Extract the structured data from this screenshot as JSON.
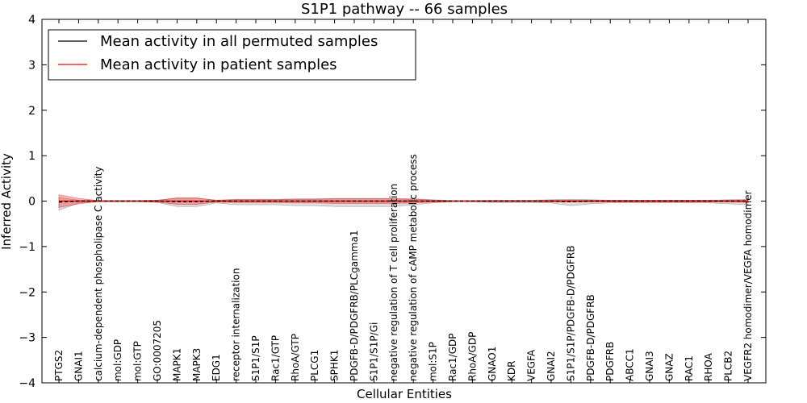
{
  "chart_data": {
    "type": "line",
    "title": "S1P1 pathway -- 66 samples",
    "xlabel": "Cellular Entities",
    "ylabel": "Inferred Activity",
    "ylim": [
      -4,
      4
    ],
    "yticks": [
      -4,
      -3,
      -2,
      -1,
      0,
      1,
      2,
      3,
      4
    ],
    "ytick_labels": [
      "−4",
      "−3",
      "−2",
      "−1",
      "0",
      "1",
      "2",
      "3",
      "4"
    ],
    "legend_position": "top-left",
    "categories": [
      "PTGS2",
      "GNAI1",
      "calcium-dependent phospholipase C activity",
      "mol:GDP",
      "mol:GTP",
      "GO:0007205",
      "MAPK1",
      "MAPK3",
      "EDG1",
      "receptor internalization",
      "S1P1/S1P",
      "Rac1/GTP",
      "RhoA/GTP",
      "PLCG1",
      "SPHK1",
      "PDGFB-D/PDGFRB/PLCgamma1",
      "S1P1/S1P/Gi",
      "negative regulation of T cell proliferation",
      "negative regulation of cAMP metabolic process",
      "mol:S1P",
      "Rac1/GDP",
      "RhoA/GDP",
      "GNAO1",
      "KDR",
      "VEGFA",
      "GNAI2",
      "S1P1/S1P/PDGFB-D/PDGFRB",
      "PDGFB-D/PDGFRB",
      "PDGFRB",
      "ABCC1",
      "GNAI3",
      "GNAZ",
      "RAC1",
      "RHOA",
      "PLCB2",
      "VEGFR2 homodimer/VEGFA homodimer"
    ],
    "series": [
      {
        "name": "Mean activity in all permuted samples",
        "color": "#000000",
        "values": [
          -0.02,
          0,
          0,
          0,
          0,
          0,
          -0.01,
          -0.01,
          0,
          0,
          0,
          0,
          0,
          0,
          0,
          0,
          0,
          0,
          0,
          0,
          0,
          0,
          0,
          0,
          0,
          0,
          -0.01,
          0,
          0,
          0,
          0,
          0,
          0,
          0,
          0,
          0
        ],
        "band_upper": [
          0.08,
          0.02,
          0.01,
          0.01,
          0.01,
          0.02,
          0.06,
          0.06,
          0.02,
          0.04,
          0.04,
          0.04,
          0.05,
          0.05,
          0.06,
          0.06,
          0.06,
          0.06,
          0.05,
          0.03,
          0.01,
          0.01,
          0.02,
          0.02,
          0.02,
          0.03,
          0.04,
          0.03,
          0.02,
          0.02,
          0.02,
          0.02,
          0.02,
          0.02,
          0.03,
          0.03
        ],
        "band_lower": [
          -0.2,
          -0.04,
          -0.01,
          -0.01,
          -0.01,
          -0.03,
          -0.12,
          -0.12,
          -0.04,
          -0.08,
          -0.08,
          -0.08,
          -0.1,
          -0.1,
          -0.12,
          -0.12,
          -0.12,
          -0.12,
          -0.08,
          -0.04,
          -0.01,
          -0.01,
          -0.03,
          -0.03,
          -0.03,
          -0.04,
          -0.1,
          -0.06,
          -0.04,
          -0.04,
          -0.04,
          -0.04,
          -0.04,
          -0.04,
          -0.06,
          -0.08
        ]
      },
      {
        "name": "Mean activity in patient samples",
        "color": "#ff0000",
        "values": [
          0,
          0,
          0,
          0,
          0,
          0,
          0,
          0,
          0,
          0,
          0,
          0,
          0,
          0,
          0,
          0,
          0,
          0,
          0,
          0,
          0,
          0,
          0,
          0,
          0,
          0,
          0,
          0,
          0,
          0,
          0,
          0,
          0,
          0,
          0,
          0
        ],
        "band_upper": [
          0.14,
          0.06,
          0.01,
          0.01,
          0.01,
          0.02,
          0.07,
          0.07,
          0.02,
          0.03,
          0.03,
          0.03,
          0.04,
          0.04,
          0.05,
          0.05,
          0.05,
          0.05,
          0.04,
          0.02,
          0.01,
          0.01,
          0.01,
          0.01,
          0.01,
          0.02,
          0.02,
          0.02,
          0.02,
          0.02,
          0.02,
          0.02,
          0.02,
          0.02,
          0.02,
          0.03
        ],
        "band_lower": [
          -0.14,
          -0.06,
          -0.01,
          -0.01,
          -0.01,
          -0.02,
          -0.07,
          -0.07,
          -0.02,
          -0.03,
          -0.03,
          -0.03,
          -0.04,
          -0.04,
          -0.05,
          -0.05,
          -0.05,
          -0.05,
          -0.04,
          -0.02,
          -0.01,
          -0.01,
          -0.01,
          -0.01,
          -0.01,
          -0.02,
          -0.02,
          -0.02,
          -0.02,
          -0.02,
          -0.02,
          -0.02,
          -0.02,
          -0.02,
          -0.02,
          -0.03
        ]
      }
    ]
  }
}
